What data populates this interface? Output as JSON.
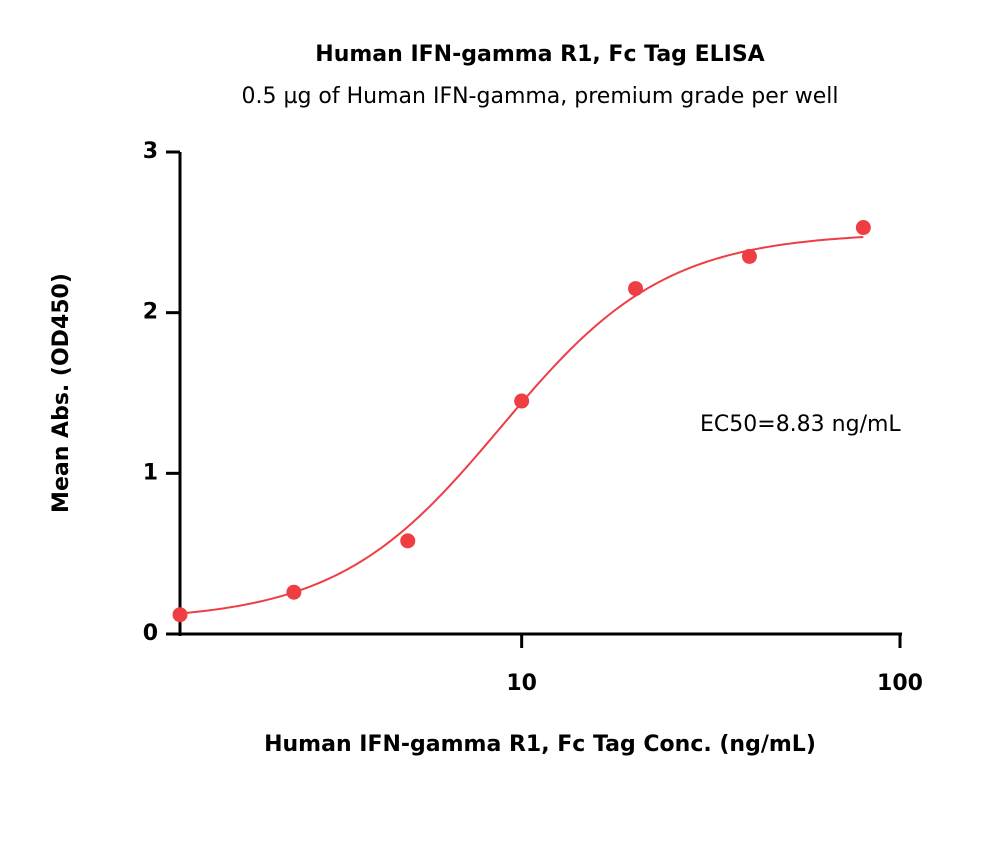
{
  "chart_data": {
    "type": "scatter",
    "title": "Human IFN-gamma R1, Fc Tag ELISA",
    "subtitle": "0.5 µg of Human IFN-gamma, premium grade per well",
    "x_label": "Human IFN-gamma R1, Fc Tag Conc. (ng/mL)",
    "y_label": "Mean Abs. (OD450)",
    "annotation": "EC50=8.83 ng/mL",
    "x_scale": "log",
    "xlim": [
      1.25,
      100
    ],
    "xticks": [
      10,
      100
    ],
    "ylim": [
      0,
      3
    ],
    "yticks": [
      0,
      1,
      2,
      3
    ],
    "series": [
      {
        "color": "#ee3e44",
        "x": [
          1.25,
          2.5,
          5,
          10,
          20,
          40,
          80
        ],
        "values": [
          0.12,
          0.26,
          0.58,
          1.45,
          2.15,
          2.35,
          2.53
        ]
      }
    ],
    "fit": {
      "bottom": 0.08,
      "top": 2.5,
      "ec50": 8.83,
      "hill": 2.0
    }
  }
}
